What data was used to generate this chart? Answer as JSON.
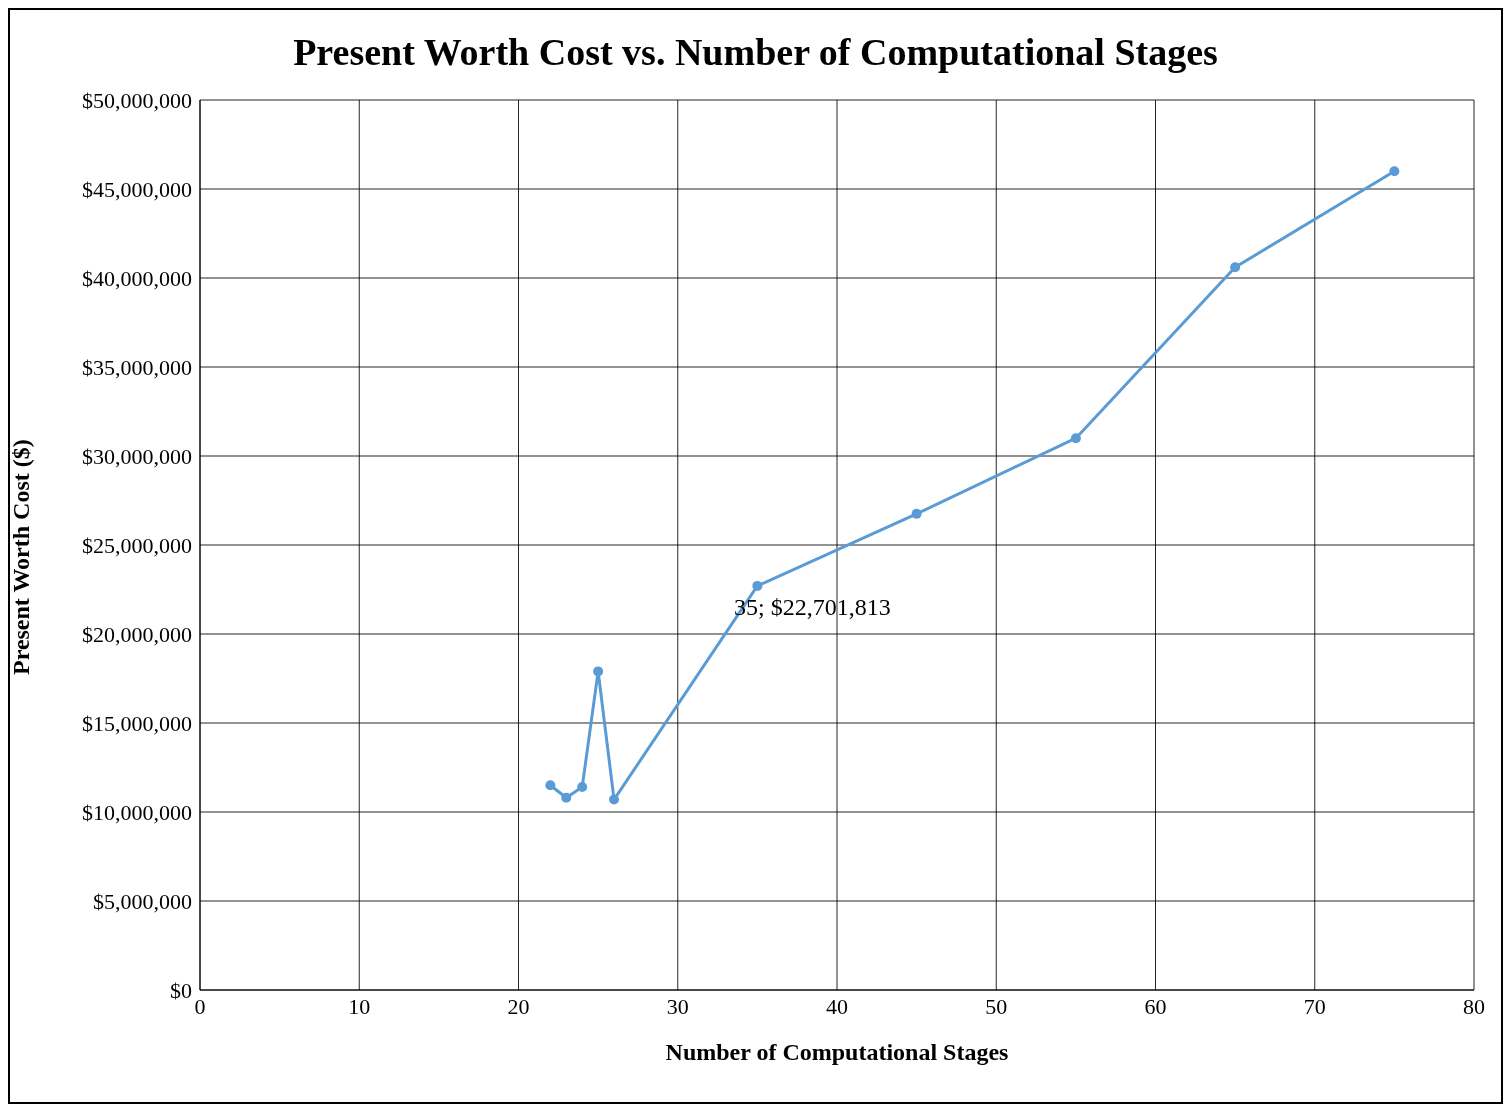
{
  "chart_data": {
    "type": "line",
    "title": "Present Worth Cost vs. Number of Computational Stages",
    "xlabel": "Number of Computational Stages",
    "ylabel": "Present Worth Cost ($)",
    "x": [
      22,
      23,
      24,
      25,
      26,
      35,
      45,
      55,
      65,
      75
    ],
    "series": [
      {
        "color": "#5b9bd5",
        "values": [
          11500000,
          10800000,
          11400000,
          17900000,
          10700000,
          22701813,
          26750000,
          31000000,
          40600000,
          46000000
        ]
      }
    ],
    "annotations": [
      {
        "text": "35; $22,701,813",
        "x": 35,
        "y": 22701813
      }
    ],
    "xlim": [
      0,
      80
    ],
    "xticks": [
      0,
      10,
      20,
      30,
      40,
      50,
      60,
      70,
      80
    ],
    "ylim": [
      0,
      50000000
    ],
    "yticks": [
      {
        "value": 0,
        "label": "$0"
      },
      {
        "value": 5000000,
        "label": "$5,000,000"
      },
      {
        "value": 10000000,
        "label": "$10,000,000"
      },
      {
        "value": 15000000,
        "label": "$15,000,000"
      },
      {
        "value": 20000000,
        "label": "$20,000,000"
      },
      {
        "value": 25000000,
        "label": "$25,000,000"
      },
      {
        "value": 30000000,
        "label": "$30,000,000"
      },
      {
        "value": 35000000,
        "label": "$35,000,000"
      },
      {
        "value": 40000000,
        "label": "$40,000,000"
      },
      {
        "value": 45000000,
        "label": "$45,000,000"
      },
      {
        "value": 50000000,
        "label": "$50,000,000"
      }
    ],
    "grid": true,
    "marker": "circle",
    "line_style": "solid"
  }
}
